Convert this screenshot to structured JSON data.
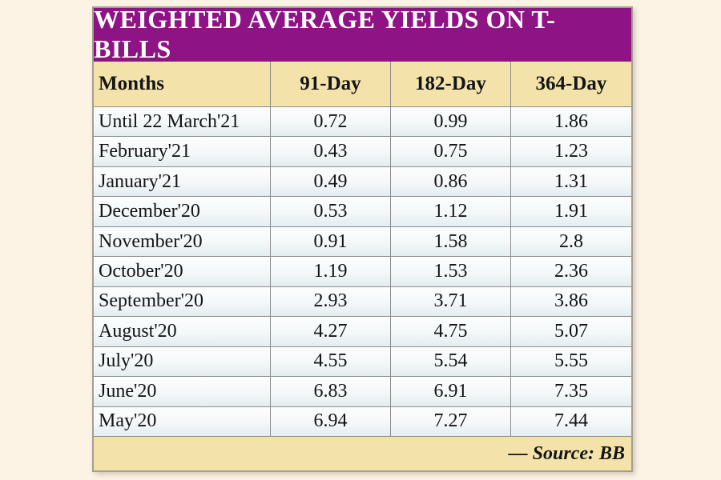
{
  "colors": {
    "page_bg": "#fdf3e5",
    "title_bg": "#8e1485",
    "title_text": "#ffffff",
    "band_bg": "#f3e3ab",
    "row_gradient_top": "#fdfefe",
    "row_gradient_bottom": "#e4edf0",
    "grid_line": "#8d8d8d",
    "text": "#141414"
  },
  "title": "WEIGHTED AVERAGE YIELDS ON T-BILLS",
  "columns": [
    "Months",
    "91-Day",
    "182-Day",
    "364-Day"
  ],
  "rows": [
    [
      "Until 22 March'21",
      "0.72",
      "0.99",
      "1.86"
    ],
    [
      "February'21",
      "0.43",
      "0.75",
      "1.23"
    ],
    [
      "January'21",
      "0.49",
      "0.86",
      "1.31"
    ],
    [
      "December'20",
      "0.53",
      "1.12",
      "1.91"
    ],
    [
      "November'20",
      "0.91",
      "1.58",
      "2.8"
    ],
    [
      "October'20",
      "1.19",
      "1.53",
      "2.36"
    ],
    [
      "September'20",
      "2.93",
      "3.71",
      "3.86"
    ],
    [
      "August'20",
      "4.27",
      "4.75",
      "5.07"
    ],
    [
      "July'20",
      "4.55",
      "5.54",
      "5.55"
    ],
    [
      "June'20",
      "6.83",
      "6.91",
      "7.35"
    ],
    [
      "May'20",
      "6.94",
      "7.27",
      "7.44"
    ]
  ],
  "source_note": "— Source: BB",
  "chart_data": {
    "type": "table",
    "title": "WEIGHTED AVERAGE YIELDS ON T-BILLS",
    "columns": [
      "Months",
      "91-Day",
      "182-Day",
      "364-Day"
    ],
    "categories": [
      "Until 22 March'21",
      "February'21",
      "January'21",
      "December'20",
      "November'20",
      "October'20",
      "September'20",
      "August'20",
      "July'20",
      "June'20",
      "May'20"
    ],
    "series": [
      {
        "name": "91-Day",
        "values": [
          0.72,
          0.43,
          0.49,
          0.53,
          0.91,
          1.19,
          2.93,
          4.27,
          4.55,
          6.83,
          6.94
        ]
      },
      {
        "name": "182-Day",
        "values": [
          0.99,
          0.75,
          0.86,
          1.12,
          1.58,
          1.53,
          3.71,
          4.75,
          5.54,
          6.91,
          7.27
        ]
      },
      {
        "name": "364-Day",
        "values": [
          1.86,
          1.23,
          1.31,
          1.91,
          2.8,
          2.36,
          3.86,
          5.07,
          5.55,
          7.35,
          7.44
        ]
      }
    ],
    "source": "BB"
  }
}
